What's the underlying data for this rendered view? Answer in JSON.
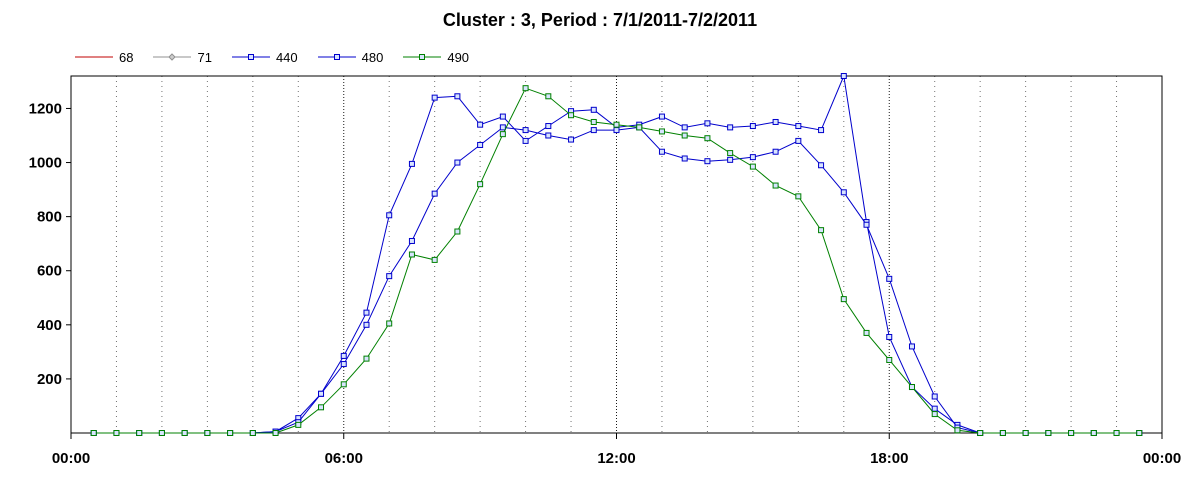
{
  "chart_data": {
    "type": "line",
    "title": "Cluster : 3, Period : 7/1/2011-7/2/2011",
    "xlabel": "",
    "ylabel": "",
    "x_ticks": [
      "00:00",
      "06:00",
      "12:00",
      "18:00",
      "00:00"
    ],
    "y_ticks": [
      200,
      400,
      600,
      800,
      1000,
      1200
    ],
    "xlim_hours": [
      0,
      24
    ],
    "ylim": [
      0,
      1320
    ],
    "grid": "vertical-dotted",
    "legend_position": "top-left",
    "series": [
      {
        "name": "68",
        "color": "#c00000",
        "marker": "none",
        "x": [],
        "y": []
      },
      {
        "name": "71",
        "color": "#909090",
        "marker": "diamond",
        "x": [],
        "y": []
      },
      {
        "name": "440",
        "color": "#0000cc",
        "marker": "square",
        "x": [
          0.5,
          1,
          1.5,
          2,
          2.5,
          3,
          3.5,
          4,
          4.5,
          5,
          5.5,
          6,
          6.5,
          7,
          7.5,
          8,
          8.5,
          9,
          9.5,
          10,
          10.5,
          11,
          11.5,
          12,
          12.5,
          13,
          13.5,
          14,
          14.5,
          15,
          15.5,
          16,
          16.5,
          17,
          17.5,
          18,
          18.5,
          19,
          19.5,
          20,
          20.5,
          21,
          21.5,
          22,
          22.5,
          23,
          23.5
        ],
        "y": [
          0,
          0,
          0,
          0,
          0,
          0,
          0,
          0,
          5,
          55,
          145,
          285,
          445,
          805,
          995,
          1240,
          1245,
          1140,
          1170,
          1080,
          1135,
          1190,
          1195,
          1130,
          1140,
          1170,
          1130,
          1145,
          1130,
          1135,
          1150,
          1135,
          1120,
          1320,
          780,
          355,
          170,
          90,
          30,
          0,
          0,
          0,
          0,
          0,
          0,
          0,
          0
        ]
      },
      {
        "name": "480",
        "color": "#0000cc",
        "marker": "square",
        "x": [
          0.5,
          1,
          1.5,
          2,
          2.5,
          3,
          3.5,
          4,
          4.5,
          5,
          5.5,
          6,
          6.5,
          7,
          7.5,
          8,
          8.5,
          9,
          9.5,
          10,
          10.5,
          11,
          11.5,
          12,
          12.5,
          13,
          13.5,
          14,
          14.5,
          15,
          15.5,
          16,
          16.5,
          17,
          17.5,
          18,
          18.5,
          19,
          19.5,
          20,
          20.5,
          21,
          21.5,
          22,
          22.5,
          23,
          23.5
        ],
        "y": [
          0,
          0,
          0,
          0,
          0,
          0,
          0,
          0,
          5,
          40,
          145,
          255,
          400,
          580,
          710,
          885,
          1000,
          1065,
          1130,
          1120,
          1100,
          1085,
          1120,
          1120,
          1130,
          1040,
          1015,
          1005,
          1010,
          1020,
          1040,
          1080,
          990,
          890,
          770,
          570,
          320,
          135,
          20,
          0,
          0,
          0,
          0,
          0,
          0,
          0,
          0
        ]
      },
      {
        "name": "490",
        "color": "#008000",
        "marker": "square",
        "x": [
          0.5,
          1,
          1.5,
          2,
          2.5,
          3,
          3.5,
          4,
          4.5,
          5,
          5.5,
          6,
          6.5,
          7,
          7.5,
          8,
          8.5,
          9,
          9.5,
          10,
          10.5,
          11,
          11.5,
          12,
          12.5,
          13,
          13.5,
          14,
          14.5,
          15,
          15.5,
          16,
          16.5,
          17,
          17.5,
          18,
          18.5,
          19,
          19.5,
          20,
          20.5,
          21,
          21.5,
          22,
          22.5,
          23,
          23.5
        ],
        "y": [
          0,
          0,
          0,
          0,
          0,
          0,
          0,
          0,
          0,
          30,
          95,
          180,
          275,
          405,
          660,
          640,
          745,
          920,
          1105,
          1275,
          1245,
          1175,
          1150,
          1140,
          1130,
          1115,
          1100,
          1090,
          1035,
          985,
          915,
          875,
          750,
          495,
          370,
          270,
          170,
          70,
          10,
          0,
          0,
          0,
          0,
          0,
          0,
          0,
          0
        ]
      }
    ]
  }
}
